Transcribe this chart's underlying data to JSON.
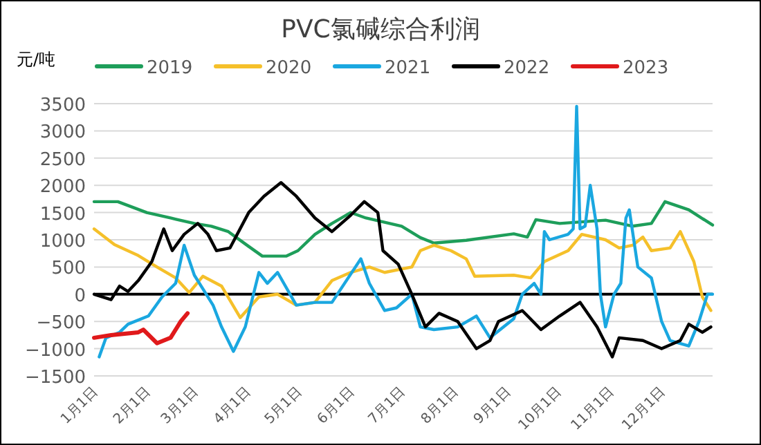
{
  "chart_data": {
    "type": "line",
    "title": "PVC氯碱综合利润",
    "ylabel": "元/吨",
    "xlim": [
      "--01-01",
      "--12-31"
    ],
    "xticks": [
      {
        "value": "--01-01",
        "label": "1月1日"
      },
      {
        "value": "--02-01",
        "label": "2月1日"
      },
      {
        "value": "--03-01",
        "label": "3月1日"
      },
      {
        "value": "--04-01",
        "label": "4月1日"
      },
      {
        "value": "--05-01",
        "label": "5月1日"
      },
      {
        "value": "--06-01",
        "label": "6月1日"
      },
      {
        "value": "--07-01",
        "label": "7月1日"
      },
      {
        "value": "--08-01",
        "label": "8月1日"
      },
      {
        "value": "--09-01",
        "label": "9月1日"
      },
      {
        "value": "--10-01",
        "label": "10月1日"
      },
      {
        "value": "--11-01",
        "label": "11月1日"
      },
      {
        "value": "--12-01",
        "label": "12月1日"
      }
    ],
    "ylim": [
      -1500,
      3500
    ],
    "yticks": [
      -1500,
      -1000,
      -500,
      0,
      500,
      1000,
      1500,
      2000,
      2500,
      3000,
      3500
    ],
    "grid": "y",
    "legend": "top",
    "marker": "none",
    "line_style": "solid",
    "series": [
      {
        "name": "2019",
        "color": "#1e9e5a",
        "x": [
          "--01-01",
          "--01-15",
          "--02-01",
          "--02-15",
          "--03-01",
          "--03-11",
          "--03-21",
          "--04-01",
          "--04-10",
          "--04-24",
          "--05-01",
          "--05-11",
          "--05-21",
          "--06-01",
          "--06-10",
          "--07-01",
          "--07-12",
          "--07-20",
          "--08-08",
          "--09-05",
          "--09-13",
          "--09-18",
          "--10-02",
          "--10-29",
          "--11-14",
          "--11-25",
          "--12-03",
          "--12-17",
          "--12-31"
        ],
        "values": [
          1700,
          1700,
          1500,
          1400,
          1300,
          1250,
          1150,
          900,
          700,
          700,
          800,
          1100,
          1300,
          1500,
          1400,
          1250,
          1040,
          940,
          990,
          1110,
          1050,
          1370,
          1300,
          1360,
          1250,
          1300,
          1700,
          1550,
          1270
        ]
      },
      {
        "name": "2020",
        "color": "#f5c02a",
        "x": [
          "--01-01",
          "--01-13",
          "--01-27",
          "--02-07",
          "--02-18",
          "--02-26",
          "--03-06",
          "--03-17",
          "--03-28",
          "--04-08",
          "--04-19",
          "--04-30",
          "--05-11",
          "--05-21",
          "--06-01",
          "--06-12",
          "--06-21",
          "--07-07",
          "--07-12",
          "--07-20",
          "--07-30",
          "--08-08",
          "--08-13",
          "--09-05",
          "--09-15",
          "--09-23",
          "--10-07",
          "--10-15",
          "--10-29",
          "--11-06",
          "--11-14",
          "--11-20",
          "--11-25",
          "--12-06",
          "--12-12",
          "--12-20",
          "--12-25",
          "--12-30"
        ],
        "values": [
          1200,
          910,
          710,
          500,
          300,
          30,
          330,
          150,
          -430,
          -50,
          0,
          -200,
          -150,
          250,
          400,
          500,
          400,
          500,
          800,
          900,
          800,
          650,
          330,
          350,
          300,
          600,
          800,
          1100,
          1000,
          850,
          900,
          1050,
          800,
          850,
          1150,
          600,
          -50,
          -300
        ]
      },
      {
        "name": "2021",
        "color": "#1aa7e0",
        "x": [
          "--01-04",
          "--01-08",
          "--01-16",
          "--01-21",
          "--02-02",
          "--02-10",
          "--02-18",
          "--02-23",
          "--03-01",
          "--03-06",
          "--03-12",
          "--03-17",
          "--03-24",
          "--03-31",
          "--04-08",
          "--04-13",
          "--04-19",
          "--04-30",
          "--05-11",
          "--05-21",
          "--06-07",
          "--06-12",
          "--06-21",
          "--06-28",
          "--07-07",
          "--07-12",
          "--07-20",
          "--08-03",
          "--08-14",
          "--08-22",
          "--09-05",
          "--09-10",
          "--09-17",
          "--09-21",
          "--09-23",
          "--09-26",
          "--10-07",
          "--10-10",
          "--10-12",
          "--10-14",
          "--10-17",
          "--10-20",
          "--10-24",
          "--10-26",
          "--10-29",
          "--11-03",
          "--11-07",
          "--11-10",
          "--11-12",
          "--11-17",
          "--11-25",
          "--12-01",
          "--12-06",
          "--12-17",
          "--12-23",
          "--12-28",
          "--12-31"
        ],
        "values": [
          -1150,
          -800,
          -700,
          -550,
          -400,
          -50,
          200,
          900,
          350,
          100,
          -200,
          -600,
          -1050,
          -600,
          400,
          200,
          400,
          -200,
          -150,
          -150,
          650,
          200,
          -300,
          -250,
          0,
          -600,
          -650,
          -600,
          -400,
          -800,
          -450,
          0,
          200,
          0,
          1150,
          1000,
          1100,
          1200,
          3450,
          1200,
          1250,
          2000,
          1200,
          0,
          -600,
          0,
          200,
          1400,
          1550,
          500,
          300,
          -500,
          -850,
          -950,
          -500,
          0,
          0
        ]
      },
      {
        "name": "2022",
        "color": "#000000",
        "x": [
          "--01-01",
          "--01-11",
          "--01-16",
          "--01-21",
          "--01-27",
          "--02-04",
          "--02-11",
          "--02-16",
          "--02-23",
          "--03-03",
          "--03-09",
          "--03-14",
          "--03-22",
          "--04-02",
          "--04-11",
          "--04-21",
          "--04-30",
          "--05-11",
          "--05-21",
          "--06-01",
          "--06-09",
          "--06-17",
          "--06-20",
          "--06-29",
          "--07-07",
          "--07-15",
          "--07-23",
          "--08-03",
          "--08-14",
          "--08-22",
          "--08-27",
          "--09-10",
          "--09-21",
          "--10-02",
          "--10-14",
          "--10-24",
          "--11-02",
          "--11-06",
          "--11-20",
          "--12-01",
          "--12-12",
          "--12-17",
          "--12-25",
          "--12-30"
        ],
        "values": [
          0,
          -100,
          150,
          50,
          250,
          600,
          1200,
          800,
          1100,
          1300,
          1100,
          800,
          850,
          1500,
          1800,
          2050,
          1800,
          1400,
          1150,
          1450,
          1700,
          1500,
          800,
          550,
          0,
          -600,
          -350,
          -500,
          -1000,
          -850,
          -500,
          -300,
          -650,
          -400,
          -150,
          -600,
          -1150,
          -800,
          -850,
          -1000,
          -850,
          -550,
          -700,
          -600
        ]
      },
      {
        "name": "2023",
        "color": "#e0191b",
        "x": [
          "--01-01",
          "--01-11",
          "--01-27",
          "--01-30",
          "--02-07",
          "--02-15",
          "--02-21",
          "--02-25"
        ],
        "values": [
          -800,
          -750,
          -700,
          -650,
          -900,
          -800,
          -500,
          -350
        ]
      }
    ]
  }
}
